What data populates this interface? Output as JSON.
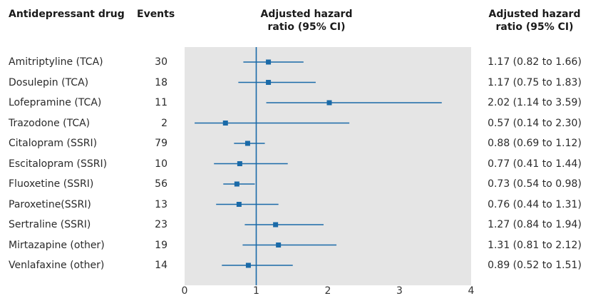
{
  "headers": {
    "drug": "Antidepressant drug",
    "events": "Events",
    "hr_mid_line1": "Adjusted hazard",
    "hr_mid_line2": "ratio (95% CI)",
    "hr_right_line1": "Adjusted hazard",
    "hr_right_line2": "ratio (95% CI)"
  },
  "chart_data": {
    "type": "forest",
    "reference_line": 1,
    "xlim": [
      0,
      4
    ],
    "x_ticks": [
      0,
      1,
      2,
      3,
      4
    ],
    "colors": {
      "marker": "#1a6aa8",
      "panel": "#e5e5e5",
      "reference": "#1a6aa8"
    },
    "rows": [
      {
        "drug": "Amitriptyline (TCA)",
        "events": "30",
        "hr": 1.17,
        "lo": 0.82,
        "hi": 1.66,
        "ci_text": "1.17 (0.82 to 1.66)"
      },
      {
        "drug": "Dosulepin (TCA)",
        "events": "18",
        "hr": 1.17,
        "lo": 0.75,
        "hi": 1.83,
        "ci_text": "1.17 (0.75 to 1.83)"
      },
      {
        "drug": "Lofepramine (TCA)",
        "events": "11",
        "hr": 2.02,
        "lo": 1.14,
        "hi": 3.59,
        "ci_text": "2.02 (1.14 to 3.59)"
      },
      {
        "drug": "Trazodone (TCA)",
        "events": "2",
        "hr": 0.57,
        "lo": 0.14,
        "hi": 2.3,
        "ci_text": "0.57 (0.14 to 2.30)"
      },
      {
        "drug": "Citalopram (SSRI)",
        "events": "79",
        "hr": 0.88,
        "lo": 0.69,
        "hi": 1.12,
        "ci_text": "0.88 (0.69 to 1.12)"
      },
      {
        "drug": "Escitalopram (SSRI)",
        "events": "10",
        "hr": 0.77,
        "lo": 0.41,
        "hi": 1.44,
        "ci_text": "0.77 (0.41 to 1.44)"
      },
      {
        "drug": "Fluoxetine (SSRI)",
        "events": "56",
        "hr": 0.73,
        "lo": 0.54,
        "hi": 0.98,
        "ci_text": "0.73 (0.54 to 0.98)"
      },
      {
        "drug": "Paroxetine(SSRI)",
        "events": "13",
        "hr": 0.76,
        "lo": 0.44,
        "hi": 1.31,
        "ci_text": "0.76 (0.44 to 1.31)"
      },
      {
        "drug": "Sertraline (SSRI)",
        "events": "23",
        "hr": 1.27,
        "lo": 0.84,
        "hi": 1.94,
        "ci_text": "1.27 (0.84 to 1.94)"
      },
      {
        "drug": "Mirtazapine (other)",
        "events": "19",
        "hr": 1.31,
        "lo": 0.81,
        "hi": 2.12,
        "ci_text": "1.31 (0.81 to 2.12)"
      },
      {
        "drug": "Venlafaxine (other)",
        "events": "14",
        "hr": 0.89,
        "lo": 0.52,
        "hi": 1.51,
        "ci_text": "0.89 (0.52 to 1.51)"
      }
    ]
  }
}
